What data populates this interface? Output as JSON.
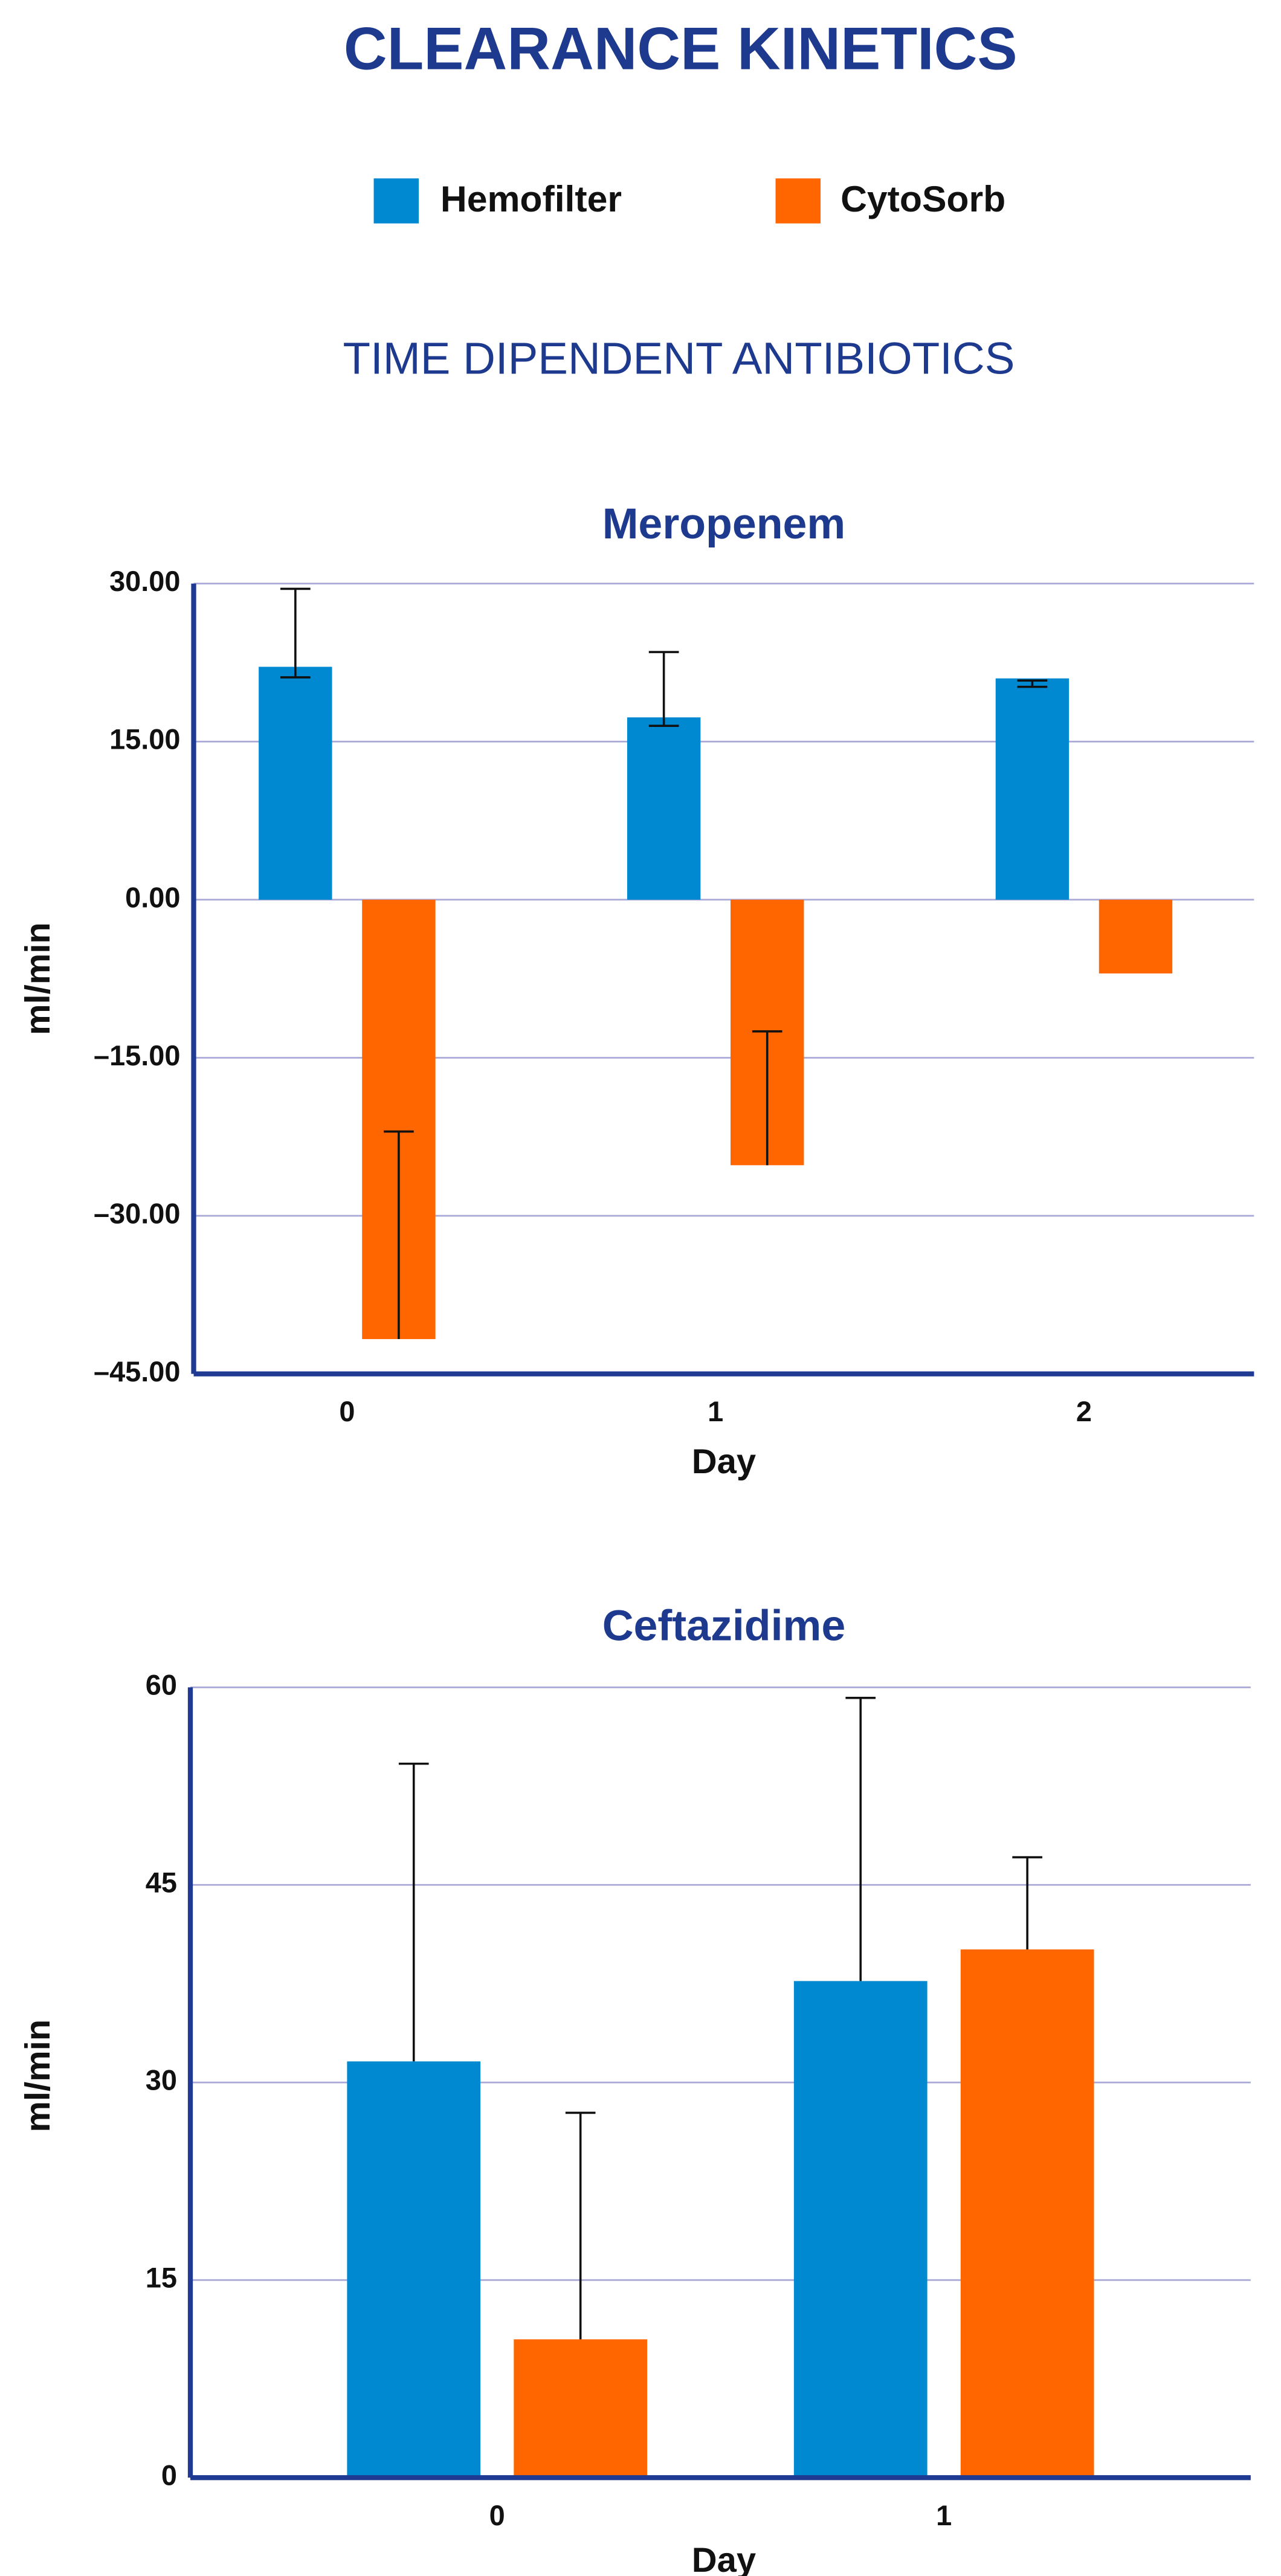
{
  "header": {
    "title": "CLEARANCE KINETICS",
    "subtitle": "TIME DIPENDENT ANTIBIOTICS"
  },
  "chart_data": [
    {
      "type": "bar",
      "title": "Meropenem",
      "x_label": "Day",
      "y_label": "ml/min",
      "categories": [
        "0",
        "1",
        "2"
      ],
      "series": [
        {
          "name": "Hemofilter",
          "color": "#0088d1",
          "values": [
            22.1,
            17.3,
            21
          ],
          "errors": [
            [
              21.1,
              29.5
            ],
            [
              16.5,
              23.5
            ],
            [
              20.2,
              20.8
            ]
          ]
        },
        {
          "name": "CytoSorb",
          "color": "#ff6600",
          "values": [
            -41.7,
            -25.2,
            -7
          ],
          "errors": [
            [
              -41.7,
              -22
            ],
            [
              -25.2,
              -12.5
            ],
            null
          ]
        }
      ],
      "ylim": [
        -45,
        30
      ],
      "yticks": [
        {
          "value": -45,
          "label": "–45.00"
        },
        {
          "value": -30,
          "label": "–30.00"
        },
        {
          "value": -15,
          "label": "–15.00"
        },
        {
          "value": 0,
          "label": "0.00"
        },
        {
          "value": 15,
          "label": "15.00"
        },
        {
          "value": 30,
          "label": "30.00"
        }
      ],
      "grid": true
    },
    {
      "type": "bar",
      "title": "Ceftazidime",
      "x_label": "Day",
      "y_label": "ml/min",
      "categories": [
        "0",
        "1"
      ],
      "series": [
        {
          "name": "Hemofilter",
          "color": "#0088d1",
          "values": [
            31.6,
            37.7
          ],
          "errors": [
            [
              31.6,
              54.2
            ],
            [
              37.7,
              59.2
            ]
          ]
        },
        {
          "name": "CytoSorb",
          "color": "#ff6600",
          "values": [
            10.5,
            40.1
          ],
          "errors": [
            [
              10.5,
              27.7
            ],
            [
              40.1,
              47.1
            ]
          ]
        }
      ],
      "ylim": [
        0,
        60
      ],
      "yticks": [
        0,
        15,
        30,
        45,
        60
      ],
      "grid": true
    }
  ]
}
